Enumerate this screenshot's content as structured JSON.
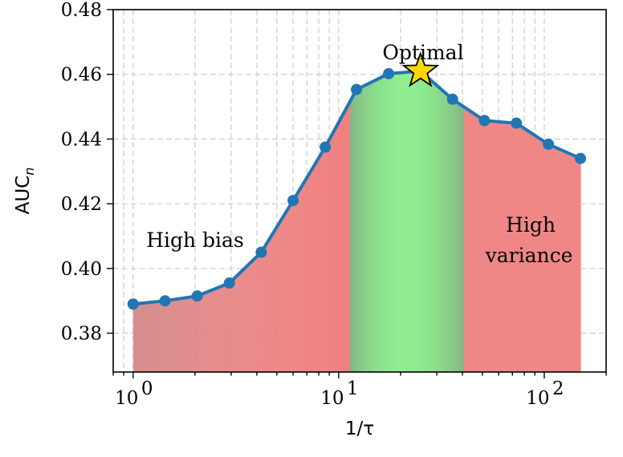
{
  "chart_data": {
    "type": "line",
    "xscale": "log",
    "xlabel": "1/τ",
    "ylabel": "AUC",
    "ylabel_sub": "n",
    "xlim": [
      0.8,
      200
    ],
    "ylim": [
      0.368,
      0.48
    ],
    "x_major_ticks": [
      {
        "value": 1,
        "base": "10",
        "exp": "0"
      },
      {
        "value": 10,
        "base": "10",
        "exp": "1"
      },
      {
        "value": 100,
        "base": "10",
        "exp": "2"
      }
    ],
    "y_ticks": [
      {
        "value": 0.38,
        "label": "0.38"
      },
      {
        "value": 0.4,
        "label": "0.40"
      },
      {
        "value": 0.42,
        "label": "0.42"
      },
      {
        "value": 0.44,
        "label": "0.44"
      },
      {
        "value": 0.46,
        "label": "0.46"
      },
      {
        "value": 0.48,
        "label": "0.48"
      }
    ],
    "grid": true,
    "series": [
      {
        "x": [
          1.0,
          1.43,
          2.05,
          2.94,
          4.2,
          6.0,
          8.6,
          12.2,
          17.5,
          25.0,
          35.8,
          51.2,
          73.2,
          104.7,
          150.0
        ],
        "y": [
          0.389,
          0.39,
          0.3915,
          0.3955,
          0.405,
          0.421,
          0.4375,
          0.4553,
          0.4602,
          0.461,
          0.4523,
          0.4457,
          0.4449,
          0.4384,
          0.434
        ],
        "color": "#1f77b4"
      }
    ],
    "optimal_point": {
      "x": 25.0,
      "y": 0.461,
      "marker": "star",
      "color": "#ffd700"
    },
    "regions": [
      {
        "label": "High bias",
        "x_from": 1.0,
        "x_to": 11.2,
        "color": "#f08080"
      },
      {
        "label": "Optimal",
        "x_from": 11.2,
        "x_to": 40.0,
        "color": "#90ee90"
      },
      {
        "label": "High variance",
        "x_from": 40.0,
        "x_to": 150.0,
        "color": "#f08080"
      }
    ],
    "annotations": [
      {
        "text": "Optimal"
      },
      {
        "text": "High bias"
      },
      {
        "text": "High"
      },
      {
        "text": "variance"
      }
    ]
  }
}
